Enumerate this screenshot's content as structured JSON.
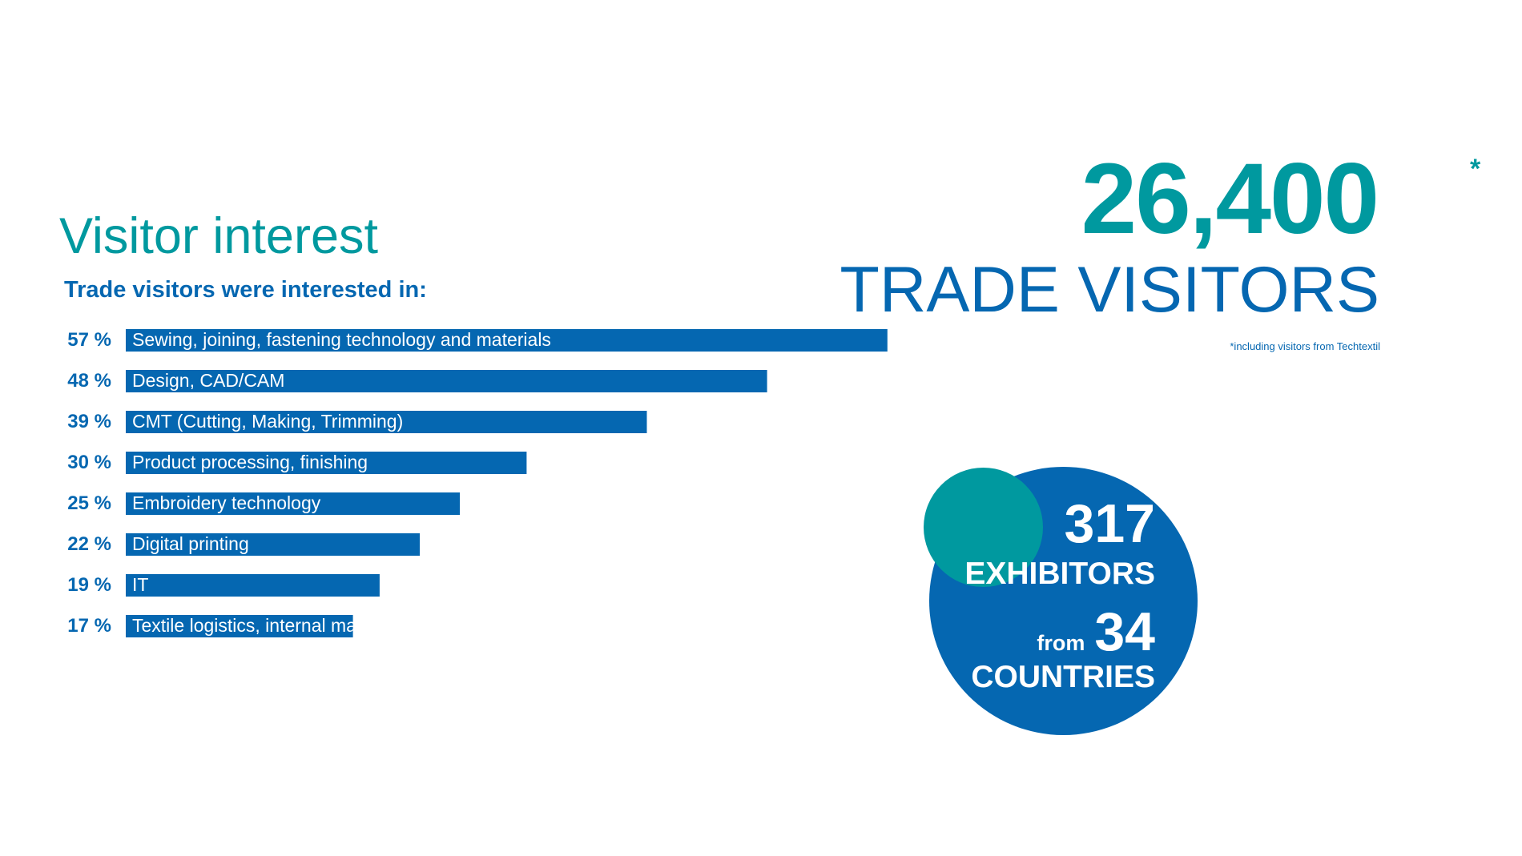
{
  "chart_data": {
    "type": "bar",
    "orientation": "horizontal",
    "title": "Visitor interest",
    "subtitle": "Trade visitors were interested in:",
    "unit_suffix": " %",
    "categories": [
      "Sewing, joining, fastening technology and materials",
      "Design, CAD/CAM",
      "CMT (Cutting, Making, Trimming)",
      "Product processing, finishing",
      "Embroidery technology",
      "Digital printing",
      "IT",
      "Textile logistics, internal material flow"
    ],
    "values": [
      57,
      48,
      39,
      30,
      25,
      22,
      19,
      17
    ],
    "bar_color": "#0567b1",
    "label_color": "#0567b1"
  },
  "headline": {
    "number": "26,400",
    "asterisk": "*",
    "label": "TRADE VISITORS",
    "footnote": "*including visitors from Techtextil",
    "number_color": "#00999f",
    "label_color": "#0567b1"
  },
  "exhibitors": {
    "number": "317",
    "label": "EXHIBITORS",
    "from": "from",
    "countries_number": "34",
    "countries_label": "COUNTRIES",
    "circle_color": "#0567b1",
    "accent_color": "#00999f"
  }
}
